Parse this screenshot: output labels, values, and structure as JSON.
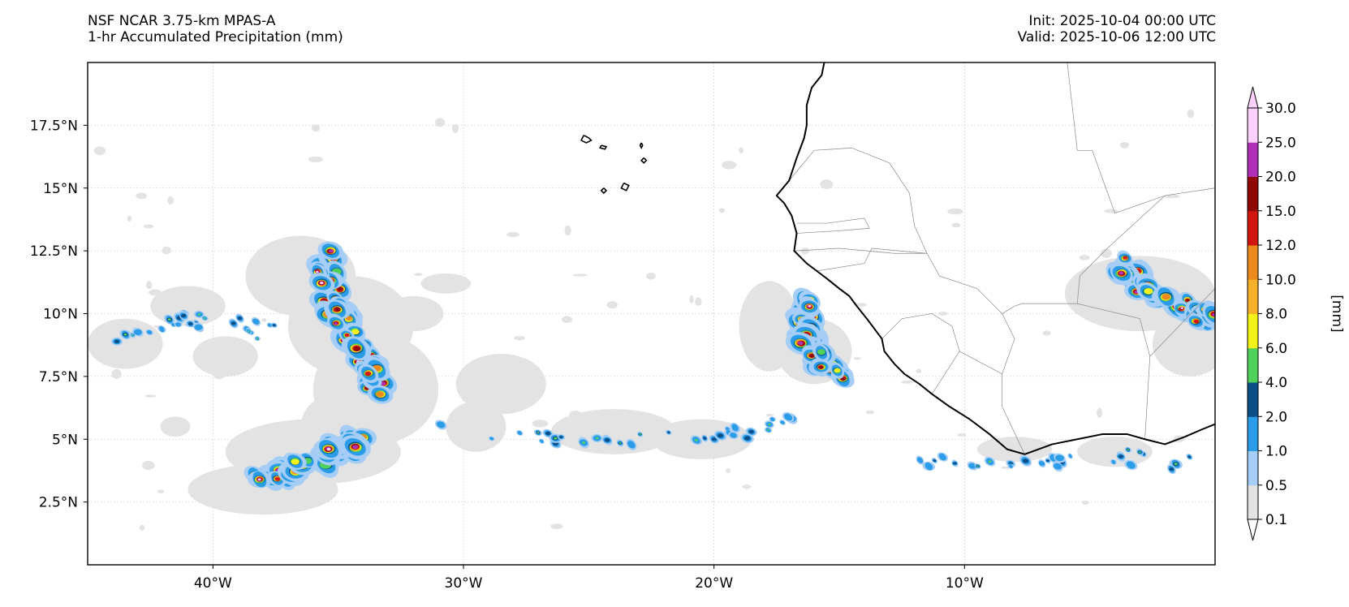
{
  "title": {
    "left_line1": "NSF NCAR 3.75-km MPAS-A",
    "left_line2": "1-hr Accumulated Precipitation (mm)",
    "right_line1": "Init: 2025-10-04 00:00 UTC",
    "right_line2": "Valid: 2025-10-06 12:00 UTC"
  },
  "map": {
    "lon_range": [
      -45,
      0
    ],
    "lat_range": [
      0,
      20
    ],
    "lat_ticks": [
      {
        "value": 2.5,
        "label": "2.5°N"
      },
      {
        "value": 5,
        "label": "5°N"
      },
      {
        "value": 7.5,
        "label": "7.5°N"
      },
      {
        "value": 10,
        "label": "10°N"
      },
      {
        "value": 12.5,
        "label": "12.5°N"
      },
      {
        "value": 15,
        "label": "15°N"
      },
      {
        "value": 17.5,
        "label": "17.5°N"
      }
    ],
    "lon_ticks": [
      {
        "value": -40,
        "label": "40°W"
      },
      {
        "value": -30,
        "label": "30°W"
      },
      {
        "value": -20,
        "label": "20°W"
      },
      {
        "value": -10,
        "label": "10°W"
      }
    ],
    "gridlines": true
  },
  "colorbar": {
    "unit_label": "[mm]",
    "extend": "both",
    "levels": [
      "0.1",
      "0.5",
      "1.0",
      "2.0",
      "4.0",
      "6.0",
      "8.0",
      "10.0",
      "12.0",
      "15.0",
      "20.0",
      "25.0",
      "30.0"
    ],
    "colors": [
      "#e3e3e3",
      "#a5cdf5",
      "#2b9de8",
      "#0b4f88",
      "#4fd15b",
      "#f3f01a",
      "#f6b12a",
      "#ec8a1e",
      "#d1150f",
      "#8f0804",
      "#b131b6",
      "#fbd0fb"
    ],
    "under_color": "#ffffff",
    "over_color": "#fbd0fb"
  },
  "precip_colors": {
    "trace": "#e3e3e3",
    "light": "#a5cdf5",
    "moderate": "#2b9de8",
    "dark": "#0b4f88",
    "green": "#4fd15b",
    "yellow": "#f3f01a",
    "orange": "#ec8a1e",
    "red": "#d1150f",
    "darkred": "#8f0804",
    "purple": "#b131b6",
    "pink": "#fbd0fb"
  },
  "coastline": {
    "africa_west": [
      [
        -15.6,
        20.0
      ],
      [
        -15.7,
        19.5
      ],
      [
        -16.1,
        19.0
      ],
      [
        -16.3,
        18.3
      ],
      [
        -16.3,
        17.5
      ],
      [
        -16.4,
        17.0
      ],
      [
        -16.7,
        16.2
      ],
      [
        -17.0,
        15.3
      ],
      [
        -17.5,
        14.7
      ],
      [
        -17.2,
        14.4
      ],
      [
        -16.9,
        13.9
      ],
      [
        -16.7,
        13.2
      ],
      [
        -16.8,
        12.5
      ],
      [
        -16.6,
        12.3
      ],
      [
        -16.3,
        12.0
      ],
      [
        -15.9,
        11.7
      ],
      [
        -15.5,
        11.4
      ],
      [
        -15.0,
        11.0
      ],
      [
        -14.6,
        10.7
      ],
      [
        -14.3,
        10.3
      ],
      [
        -13.9,
        9.8
      ],
      [
        -13.6,
        9.4
      ],
      [
        -13.3,
        9.0
      ],
      [
        -13.2,
        8.5
      ],
      [
        -12.8,
        8.0
      ],
      [
        -12.4,
        7.6
      ],
      [
        -11.8,
        7.2
      ],
      [
        -11.3,
        6.8
      ],
      [
        -10.6,
        6.3
      ],
      [
        -9.8,
        5.8
      ],
      [
        -9.0,
        5.2
      ],
      [
        -8.3,
        4.6
      ],
      [
        -7.6,
        4.4
      ],
      [
        -6.5,
        4.8
      ],
      [
        -5.5,
        5.0
      ],
      [
        -4.5,
        5.2
      ],
      [
        -3.5,
        5.2
      ],
      [
        -2.8,
        5.0
      ],
      [
        -2.0,
        4.8
      ],
      [
        -1.2,
        5.1
      ],
      [
        -0.5,
        5.4
      ],
      [
        0.0,
        5.6
      ]
    ],
    "cape_verde": [
      [
        [
          -25.2,
          17.1
        ],
        [
          -25.0,
          17.0
        ],
        [
          -24.9,
          16.9
        ],
        [
          -25.1,
          16.8
        ],
        [
          -25.3,
          16.9
        ],
        [
          -25.2,
          17.1
        ]
      ],
      [
        [
          -24.5,
          16.7
        ],
        [
          -24.3,
          16.65
        ],
        [
          -24.35,
          16.55
        ],
        [
          -24.55,
          16.6
        ],
        [
          -24.5,
          16.7
        ]
      ],
      [
        [
          -22.9,
          16.8
        ],
        [
          -22.85,
          16.7
        ],
        [
          -22.9,
          16.6
        ],
        [
          -22.95,
          16.7
        ],
        [
          -22.9,
          16.8
        ]
      ],
      [
        [
          -22.8,
          16.2
        ],
        [
          -22.7,
          16.1
        ],
        [
          -22.8,
          16.0
        ],
        [
          -22.9,
          16.1
        ],
        [
          -22.8,
          16.2
        ]
      ],
      [
        [
          -23.6,
          15.2
        ],
        [
          -23.4,
          15.1
        ],
        [
          -23.5,
          14.9
        ],
        [
          -23.7,
          15.0
        ],
        [
          -23.6,
          15.2
        ]
      ],
      [
        [
          -24.4,
          15.0
        ],
        [
          -24.3,
          14.9
        ],
        [
          -24.4,
          14.8
        ],
        [
          -24.5,
          14.9
        ],
        [
          -24.4,
          15.0
        ]
      ]
    ],
    "borders": [
      [
        [
          -5.9,
          20.0
        ],
        [
          -5.5,
          16.5
        ],
        [
          -4.9,
          16.5
        ]
      ],
      [
        [
          -17.0,
          15.3
        ],
        [
          -16.0,
          16.5
        ],
        [
          -14.5,
          16.6
        ],
        [
          -13.0,
          16.0
        ],
        [
          -12.2,
          14.8
        ],
        [
          -12.0,
          13.5
        ],
        [
          -11.5,
          12.4
        ],
        [
          -12.8,
          12.4
        ],
        [
          -15.0,
          12.6
        ],
        [
          -16.8,
          12.5
        ]
      ],
      [
        [
          -16.7,
          13.6
        ],
        [
          -15.5,
          13.6
        ],
        [
          -14.0,
          13.8
        ],
        [
          -13.8,
          13.4
        ],
        [
          -15.0,
          13.3
        ],
        [
          -16.7,
          13.2
        ]
      ],
      [
        [
          -15.9,
          11.7
        ],
        [
          -14.0,
          12.0
        ],
        [
          -13.7,
          12.6
        ],
        [
          -11.5,
          12.4
        ]
      ],
      [
        [
          -13.3,
          9.0
        ],
        [
          -12.5,
          9.8
        ],
        [
          -11.3,
          10.0
        ],
        [
          -10.5,
          9.5
        ],
        [
          -10.2,
          8.5
        ],
        [
          -11.3,
          6.8
        ]
      ],
      [
        [
          -10.2,
          8.5
        ],
        [
          -8.5,
          7.6
        ],
        [
          -8.5,
          6.3
        ],
        [
          -7.6,
          4.4
        ]
      ],
      [
        [
          -11.5,
          12.4
        ],
        [
          -11.0,
          11.5
        ],
        [
          -9.5,
          11.0
        ],
        [
          -8.5,
          10.0
        ],
        [
          -8.0,
          10.3
        ],
        [
          -7.7,
          10.4
        ]
      ],
      [
        [
          -8.5,
          10.0
        ],
        [
          -8.0,
          9.0
        ],
        [
          -8.5,
          7.6
        ]
      ],
      [
        [
          -7.7,
          10.4
        ],
        [
          -5.5,
          10.4
        ],
        [
          -3.0,
          9.8
        ],
        [
          -2.6,
          8.3
        ],
        [
          -2.8,
          5.0
        ]
      ],
      [
        [
          -5.5,
          10.4
        ],
        [
          -5.4,
          11.5
        ],
        [
          -4.3,
          12.6
        ],
        [
          -2.0,
          14.7
        ],
        [
          0.0,
          15.0
        ]
      ],
      [
        [
          -2.6,
          8.3
        ],
        [
          0.0,
          11.0
        ]
      ],
      [
        [
          -4.9,
          16.5
        ],
        [
          -4.0,
          14.0
        ],
        [
          -2.0,
          14.7
        ]
      ]
    ]
  }
}
